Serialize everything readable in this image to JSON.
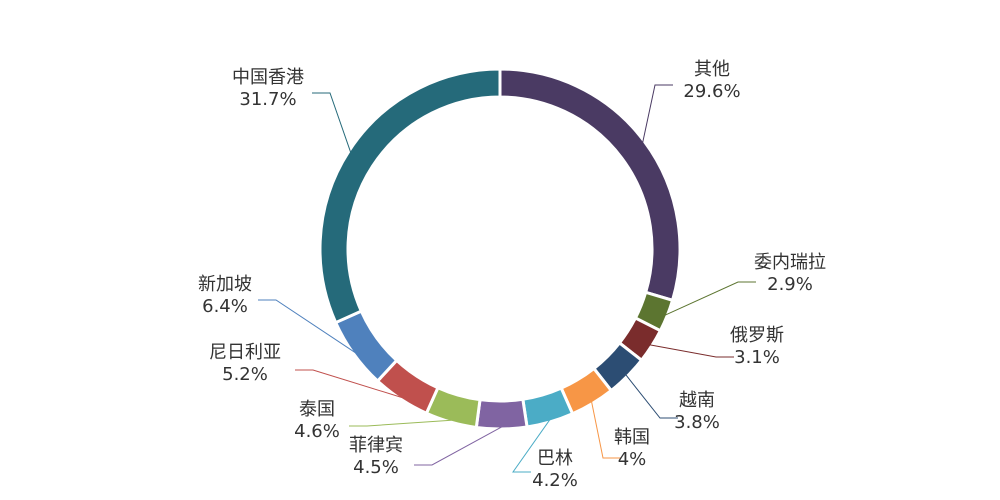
{
  "chart_data": {
    "type": "pie",
    "donut": true,
    "title": "",
    "legend": "none",
    "slices": [
      {
        "name": "其他",
        "value": 29.6,
        "label": "29.6%",
        "color": "#4a3a63"
      },
      {
        "name": "委内瑞拉",
        "value": 2.9,
        "label": "2.9%",
        "color": "#5c7530"
      },
      {
        "name": "俄罗斯",
        "value": 3.1,
        "label": "3.1%",
        "color": "#7a2c2c"
      },
      {
        "name": "越南",
        "value": 3.8,
        "label": "3.8%",
        "color": "#2c4d73"
      },
      {
        "name": "韩国",
        "value": 4,
        "label": "4%",
        "color": "#f79646"
      },
      {
        "name": "巴林",
        "value": 4.2,
        "label": "4.2%",
        "color": "#4bacc6"
      },
      {
        "name": "菲律宾",
        "value": 4.5,
        "label": "4.5%",
        "color": "#8064a2"
      },
      {
        "name": "泰国",
        "value": 4.6,
        "label": "4.6%",
        "color": "#9bbb59"
      },
      {
        "name": "尼日利亚",
        "value": 5.2,
        "label": "5.2%",
        "color": "#c0504d"
      },
      {
        "name": "新加坡",
        "value": 6.4,
        "label": "6.4%",
        "color": "#4f81bd"
      },
      {
        "name": "中国香港",
        "value": 31.7,
        "label": "31.7%",
        "color": "#256a7a"
      }
    ]
  }
}
